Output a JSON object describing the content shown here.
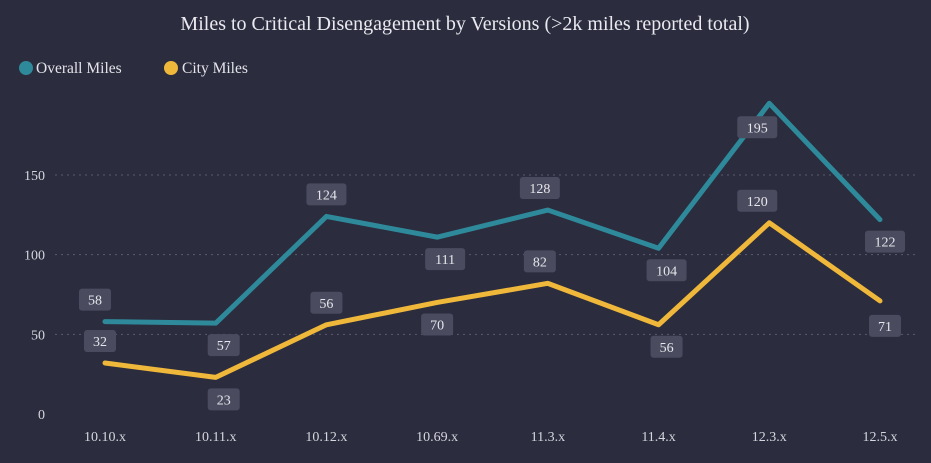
{
  "chart_data": {
    "type": "line",
    "title": "Miles to Critical Disengagement by Versions (>2k miles reported total)",
    "categories": [
      "10.10.x",
      "10.11.x",
      "10.12.x",
      "10.69.x",
      "11.3.x",
      "11.4.x",
      "12.3.x",
      "12.5.x"
    ],
    "series": [
      {
        "name": "Overall Miles",
        "color": "#2e8a9a",
        "values": [
          58,
          57,
          124,
          111,
          128,
          104,
          195,
          122
        ],
        "labels": [
          "58",
          "57",
          "124",
          "111",
          "128",
          "104",
          "195",
          "122"
        ]
      },
      {
        "name": "City Miles",
        "color": "#f0b83a",
        "values": [
          32,
          23,
          56,
          70,
          82,
          56,
          120,
          71
        ],
        "labels": [
          "32",
          "23",
          "56",
          "70",
          "82",
          "56",
          "120",
          "71"
        ]
      }
    ],
    "xlabel": "",
    "ylabel": "",
    "ylim": [
      0,
      200
    ],
    "yticks": [
      0,
      50,
      100,
      150
    ],
    "ytick_labels": [
      "0",
      "50",
      "100",
      "150"
    ],
    "grid": true,
    "legend": "top-left"
  }
}
